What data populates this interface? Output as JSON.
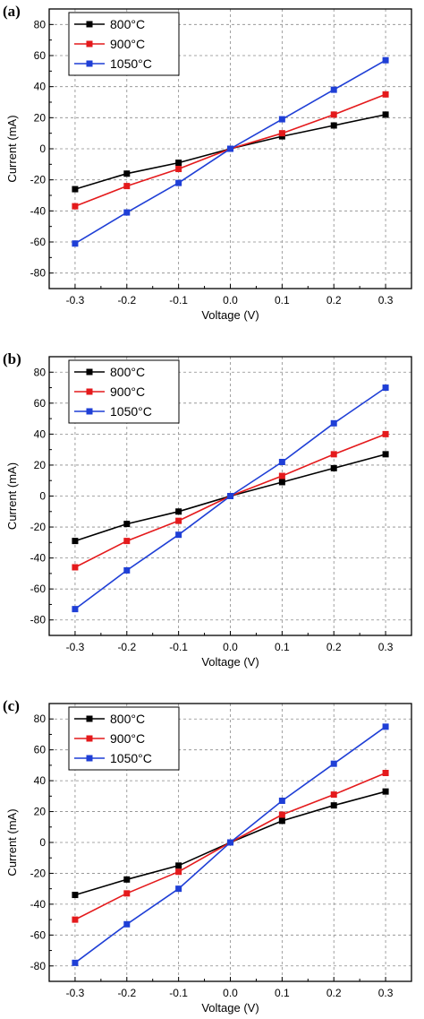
{
  "colors": {
    "800C": "#000000",
    "900C": "#e41a1c",
    "1050C": "#1f3fd6",
    "grid": "#8a8a8a"
  },
  "chart_data": [
    {
      "panel_label": "(a)",
      "type": "line",
      "xlabel": "Voltage (V)",
      "ylabel": "Current (mA)",
      "xlim": [
        -0.35,
        0.35
      ],
      "ylim": [
        -90,
        90
      ],
      "xticks": [
        -0.3,
        -0.2,
        -0.1,
        0.0,
        0.1,
        0.2,
        0.3
      ],
      "xtick_labels": [
        "-0.3",
        "-0.2",
        "-0.1",
        "0.0",
        "0.1",
        "0.2",
        "0.3"
      ],
      "yticks": [
        -80,
        -60,
        -40,
        -20,
        0,
        20,
        40,
        60,
        80
      ],
      "ytick_labels": [
        "-80",
        "-60",
        "-40",
        "-20",
        "0",
        "20",
        "40",
        "60",
        "80"
      ],
      "grid": true,
      "legend": "top-left",
      "x": [
        -0.3,
        -0.2,
        -0.1,
        0.0,
        0.1,
        0.2,
        0.3
      ],
      "series": [
        {
          "name": "800°C",
          "color_key": "800C",
          "values": [
            -26,
            -16,
            -9,
            0,
            8,
            15,
            22
          ]
        },
        {
          "name": "900°C",
          "color_key": "900C",
          "values": [
            -37,
            -24,
            -13,
            0,
            10,
            22,
            35
          ]
        },
        {
          "name": "1050°C",
          "color_key": "1050C",
          "values": [
            -61,
            -41,
            -22,
            0,
            19,
            38,
            57
          ]
        }
      ]
    },
    {
      "panel_label": "(b)",
      "type": "line",
      "xlabel": "Voltage (V)",
      "ylabel": "Current (mA)",
      "xlim": [
        -0.35,
        0.35
      ],
      "ylim": [
        -90,
        90
      ],
      "xticks": [
        -0.3,
        -0.2,
        -0.1,
        0.0,
        0.1,
        0.2,
        0.3
      ],
      "xtick_labels": [
        "-0.3",
        "-0.2",
        "-0.1",
        "0.0",
        "0.1",
        "0.2",
        "0.3"
      ],
      "yticks": [
        -80,
        -60,
        -40,
        -20,
        0,
        20,
        40,
        60,
        80
      ],
      "ytick_labels": [
        "-80",
        "-60",
        "-40",
        "-20",
        "0",
        "20",
        "40",
        "60",
        "80"
      ],
      "grid": true,
      "legend": "top-left",
      "x": [
        -0.3,
        -0.2,
        -0.1,
        0.0,
        0.1,
        0.2,
        0.3
      ],
      "series": [
        {
          "name": "800°C",
          "color_key": "800C",
          "values": [
            -29,
            -18,
            -10,
            0,
            9,
            18,
            27
          ]
        },
        {
          "name": "900°C",
          "color_key": "900C",
          "values": [
            -46,
            -29,
            -16,
            0,
            13,
            27,
            40
          ]
        },
        {
          "name": "1050°C",
          "color_key": "1050C",
          "values": [
            -73,
            -48,
            -25,
            0,
            22,
            47,
            70
          ]
        }
      ]
    },
    {
      "panel_label": "(c)",
      "type": "line",
      "xlabel": "Voltage (V)",
      "ylabel": "Current (mA)",
      "xlim": [
        -0.35,
        0.35
      ],
      "ylim": [
        -90,
        90
      ],
      "xticks": [
        -0.3,
        -0.2,
        -0.1,
        0.0,
        0.1,
        0.2,
        0.3
      ],
      "xtick_labels": [
        "-0.3",
        "-0.2",
        "-0.1",
        "0.0",
        "0.1",
        "0.2",
        "0.3"
      ],
      "yticks": [
        -80,
        -60,
        -40,
        -20,
        0,
        20,
        40,
        60,
        80
      ],
      "ytick_labels": [
        "-80",
        "-60",
        "-40",
        "-20",
        "0",
        "20",
        "40",
        "60",
        "80"
      ],
      "grid": true,
      "legend": "top-left",
      "x": [
        -0.3,
        -0.2,
        -0.1,
        0.0,
        0.1,
        0.2,
        0.3
      ],
      "series": [
        {
          "name": "800°C",
          "color_key": "800C",
          "values": [
            -34,
            -24,
            -15,
            0,
            14,
            24,
            33
          ]
        },
        {
          "name": "900°C",
          "color_key": "900C",
          "values": [
            -50,
            -33,
            -19,
            0,
            18,
            31,
            45
          ]
        },
        {
          "name": "1050°C",
          "color_key": "1050C",
          "values": [
            -78,
            -53,
            -30,
            0,
            27,
            51,
            75
          ]
        }
      ]
    }
  ]
}
